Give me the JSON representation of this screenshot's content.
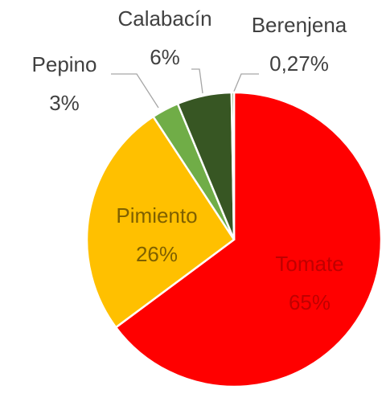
{
  "chart_data": {
    "type": "pie",
    "categories": [
      "Tomate",
      "Pimiento",
      "Pepino",
      "Calabacín",
      "Berenjena"
    ],
    "values": [
      65,
      26,
      3,
      6,
      0.27
    ],
    "value_labels": [
      "65%",
      "26%",
      "3%",
      "6%",
      "0,27%"
    ],
    "colors": [
      "#ff0000",
      "#ffc000",
      "#70ad47",
      "#375623",
      "#548235"
    ]
  }
}
